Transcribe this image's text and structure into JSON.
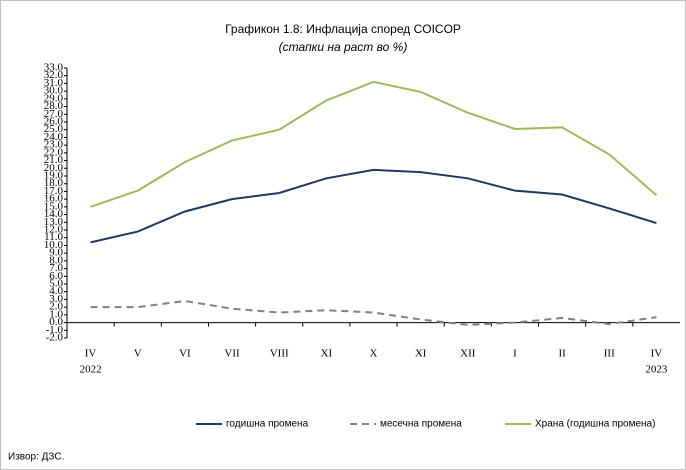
{
  "chart_data": {
    "type": "line",
    "title": "Графикон 1.8: Инфлација според COICOP",
    "subtitle": "(стапки на раст во %)",
    "source": "Извор: ДЗС.",
    "categories": [
      "IV",
      "V",
      "VI",
      "VII",
      "VIII",
      "XI",
      "X",
      "XI",
      "XII",
      "I",
      "II",
      "III",
      "IV"
    ],
    "years": [
      "2022",
      null,
      null,
      null,
      null,
      null,
      null,
      null,
      null,
      null,
      null,
      null,
      "2023"
    ],
    "series": [
      {
        "name": "годишна промена",
        "color": "#1f3864",
        "style": "solid",
        "values": [
          10.4,
          11.8,
          14.4,
          16.0,
          16.8,
          18.7,
          19.8,
          19.5,
          18.7,
          17.1,
          16.6,
          14.8,
          12.9
        ]
      },
      {
        "name": "месечна промена",
        "color": "#808080",
        "style": "dashed",
        "values": [
          2.0,
          2.0,
          2.8,
          1.8,
          1.3,
          1.6,
          1.3,
          0.4,
          -0.3,
          0.0,
          0.6,
          -0.2,
          0.7
        ]
      },
      {
        "name": "Храна  (годишна промена)",
        "color": "#9bbb59",
        "style": "solid",
        "values": [
          15.0,
          17.1,
          20.8,
          23.6,
          25.0,
          28.8,
          31.2,
          29.9,
          27.2,
          25.1,
          25.3,
          21.8,
          16.5
        ]
      }
    ],
    "ylim": [
      -2,
      33
    ],
    "yticks": [
      {
        "value": -2,
        "label": "-2.0"
      },
      {
        "value": -1,
        "label": "-1.0"
      },
      {
        "value": 0,
        "label": "0.0"
      },
      {
        "value": 1,
        "label": "1.0"
      },
      {
        "value": 2,
        "label": "2.0"
      },
      {
        "value": 3,
        "label": "3.0"
      },
      {
        "value": 4,
        "label": "4.0"
      },
      {
        "value": 5,
        "label": "5.0"
      },
      {
        "value": 6,
        "label": "6.0"
      },
      {
        "value": 7,
        "label": "7.0"
      },
      {
        "value": 8,
        "label": "8.0"
      },
      {
        "value": 9,
        "label": "9.0"
      },
      {
        "value": 10,
        "label": "10.0"
      },
      {
        "value": 11,
        "label": "11.0"
      },
      {
        "value": 12,
        "label": "12.0"
      },
      {
        "value": 13,
        "label": "13.0"
      },
      {
        "value": 14,
        "label": "14.0"
      },
      {
        "value": 15,
        "label": "15.0"
      },
      {
        "value": 16,
        "label": "16.0"
      },
      {
        "value": 17,
        "label": "17.0"
      },
      {
        "value": 18,
        "label": "18.0"
      },
      {
        "value": 19,
        "label": "19.0"
      },
      {
        "value": 20,
        "label": "20.0"
      },
      {
        "value": 21,
        "label": "21.0"
      },
      {
        "value": 22,
        "label": "22.0"
      },
      {
        "value": 23,
        "label": "23.0"
      },
      {
        "value": 24,
        "label": "24.0"
      },
      {
        "value": 25,
        "label": "25.0"
      },
      {
        "value": 26,
        "label": "26.0"
      },
      {
        "value": 27,
        "label": "27.0"
      },
      {
        "value": 28,
        "label": "28.0"
      },
      {
        "value": 29,
        "label": "29.0"
      },
      {
        "value": 30,
        "label": "30.0"
      },
      {
        "value": 31,
        "label": "31.0"
      },
      {
        "value": 32,
        "label": "32.0"
      },
      {
        "value": 33,
        "label": "33.0"
      }
    ],
    "grid": false
  }
}
